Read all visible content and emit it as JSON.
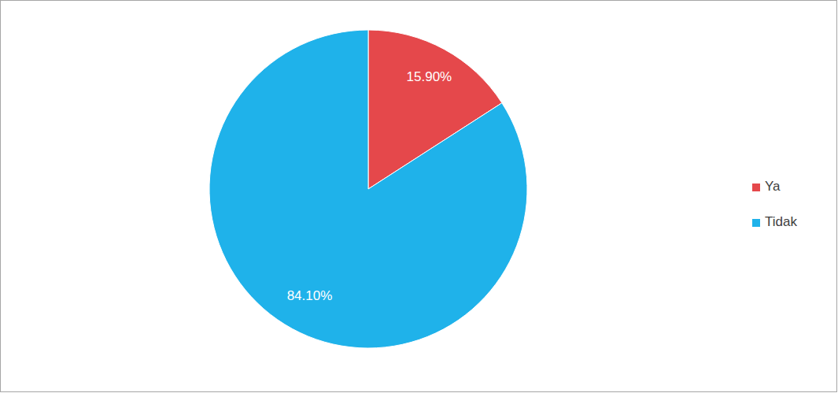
{
  "chart_data": {
    "type": "pie",
    "categories": [
      "Ya",
      "Tidak"
    ],
    "values": [
      15.9,
      84.1
    ],
    "value_labels": [
      "15.90%",
      "84.10%"
    ],
    "colors": [
      "#e5484b",
      "#1fb2ea"
    ],
    "data_labels": true,
    "legend": "right"
  }
}
